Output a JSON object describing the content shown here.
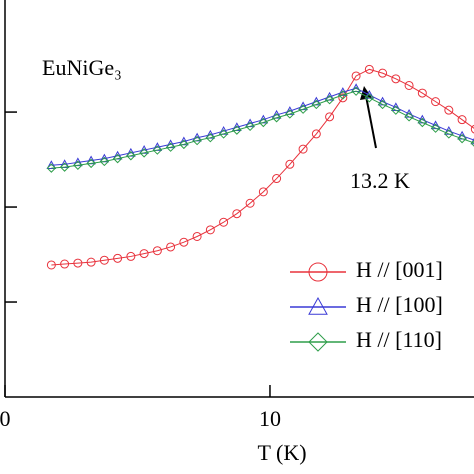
{
  "chart_data": {
    "type": "line",
    "annotation": "EuNiGe₃",
    "peak_label": "13.2 K",
    "xlabel": "T (K)",
    "xlim": [
      0,
      17.7
    ],
    "xticks": [
      0,
      10
    ],
    "ylim": [
      0,
      4.18
    ],
    "yticks": [
      1,
      2,
      3
    ],
    "legend": "lower right",
    "x": [
      1.75,
      2.25,
      2.75,
      3.25,
      3.75,
      4.25,
      4.75,
      5.25,
      5.75,
      6.25,
      6.75,
      7.25,
      7.75,
      8.25,
      8.75,
      9.25,
      9.75,
      10.25,
      10.75,
      11.25,
      11.75,
      12.25,
      12.75,
      13.25,
      13.75,
      14.25,
      14.75,
      15.25,
      15.75,
      16.25,
      16.75,
      17.25,
      17.75
    ],
    "series": [
      {
        "name": "H // [001]",
        "color": "#e8323c",
        "marker": "circle",
        "values": [
          1.39,
          1.4,
          1.41,
          1.42,
          1.44,
          1.46,
          1.48,
          1.51,
          1.54,
          1.58,
          1.63,
          1.69,
          1.76,
          1.84,
          1.93,
          2.04,
          2.16,
          2.3,
          2.45,
          2.61,
          2.77,
          2.95,
          3.15,
          3.38,
          3.45,
          3.41,
          3.35,
          3.28,
          3.2,
          3.11,
          3.02,
          2.92,
          2.82
        ]
      },
      {
        "name": "H // [100]",
        "color": "#3a3ad6",
        "marker": "triangle",
        "values": [
          2.44,
          2.45,
          2.47,
          2.49,
          2.51,
          2.54,
          2.57,
          2.6,
          2.63,
          2.66,
          2.69,
          2.73,
          2.76,
          2.8,
          2.84,
          2.88,
          2.92,
          2.97,
          3.01,
          3.06,
          3.11,
          3.16,
          3.21,
          3.25,
          3.18,
          3.11,
          3.05,
          2.98,
          2.92,
          2.86,
          2.8,
          2.75,
          2.7
        ]
      },
      {
        "name": "H // [110]",
        "color": "#2e9e4a",
        "marker": "diamond",
        "values": [
          2.41,
          2.42,
          2.44,
          2.46,
          2.48,
          2.51,
          2.54,
          2.57,
          2.6,
          2.63,
          2.66,
          2.7,
          2.73,
          2.77,
          2.81,
          2.85,
          2.89,
          2.94,
          2.98,
          3.03,
          3.08,
          3.13,
          3.18,
          3.22,
          3.15,
          3.08,
          3.02,
          2.95,
          2.89,
          2.83,
          2.77,
          2.72,
          2.67
        ]
      }
    ]
  }
}
